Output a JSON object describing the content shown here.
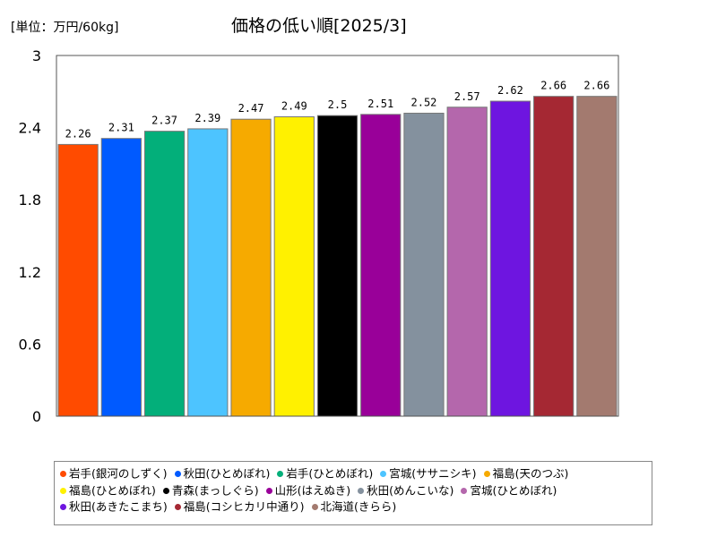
{
  "chart_data": {
    "type": "bar",
    "title": "価格の低い順[2025/3]",
    "unit_label": "[単位：万円/60kg]",
    "ylim": [
      0,
      3
    ],
    "yticks": [
      "0",
      "0.6",
      "1.2",
      "1.8",
      "2.4",
      "3"
    ],
    "ytick_values": [
      0,
      0.6,
      1.2,
      1.8,
      2.4,
      3
    ],
    "grid": false,
    "legend_position": "bottom",
    "categories": [
      "岩手(銀河のしずく)",
      "秋田(ひとめぼれ)",
      "岩手(ひとめぼれ)",
      "宮城(ササニシキ)",
      "福島(天のつぶ)",
      "福島(ひとめぼれ)",
      "青森(まっしぐら)",
      "山形(はえぬき)",
      "秋田(めんこいな)",
      "宮城(ひとめぼれ)",
      "秋田(あきたこまち)",
      "福島(コシヒカリ中通り)",
      "北海道(きらら)"
    ],
    "values": [
      2.26,
      2.31,
      2.37,
      2.39,
      2.47,
      2.49,
      2.5,
      2.51,
      2.52,
      2.57,
      2.62,
      2.66,
      2.66
    ],
    "value_labels": [
      "2.26",
      "2.31",
      "2.37",
      "2.39",
      "2.47",
      "2.49",
      "2.5",
      "2.51",
      "2.52",
      "2.57",
      "2.62",
      "2.66",
      "2.66"
    ],
    "colors": [
      "#ff4b00",
      "#005aff",
      "#03af7a",
      "#4dc4ff",
      "#f6aa00",
      "#fff100",
      "#000000",
      "#990099",
      "#84919e",
      "#b467ac",
      "#6e15e0",
      "#a52833",
      "#a37a6f"
    ]
  }
}
